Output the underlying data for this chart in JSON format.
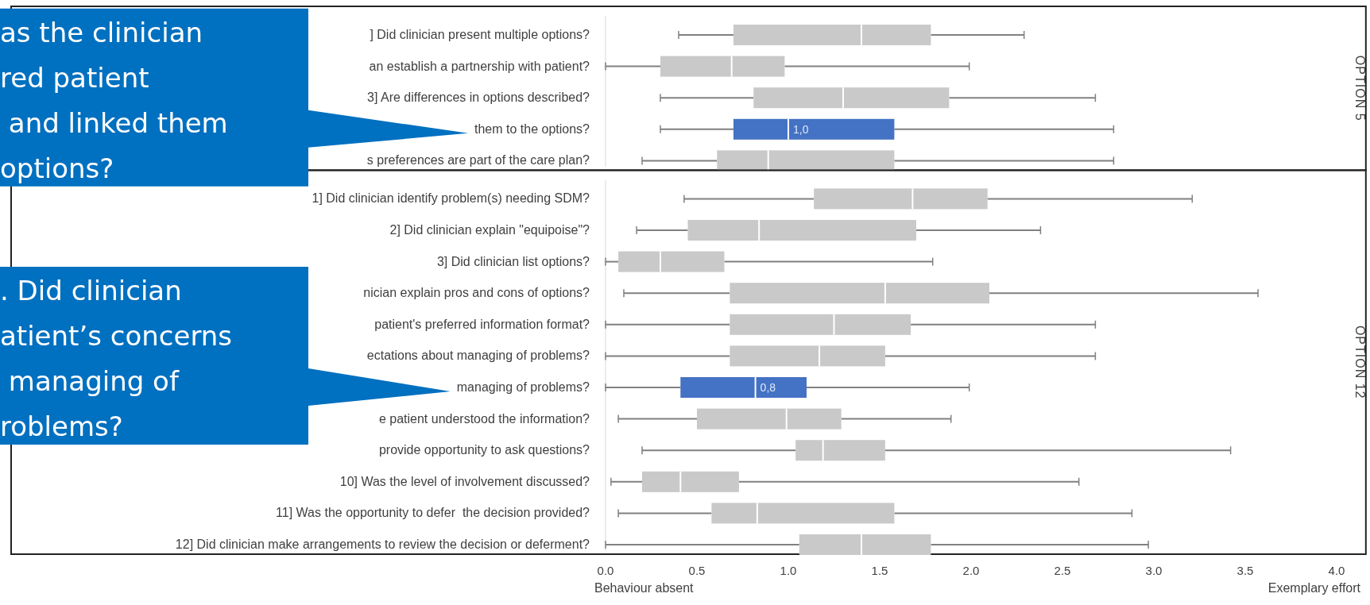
{
  "chart_data": [
    {
      "type": "box",
      "title": "OPTION 5",
      "orientation": "horizontal",
      "categories": [
        "] Did clinician present multiple options?",
        "an establish a partnership with patient?",
        "3] Are differences in options described?",
        "them to the options?",
        "s preferences are part of the care plan?"
      ],
      "boxes": [
        {
          "low": 0.4,
          "q1": 0.7,
          "median": 1.4,
          "q3": 1.78,
          "high": 2.29
        },
        {
          "low": 0,
          "q1": 0.3,
          "median": 0.69,
          "q3": 0.98,
          "high": 1.99
        },
        {
          "low": 0.3,
          "q1": 0.81,
          "median": 1.3,
          "q3": 1.88,
          "high": 2.68
        },
        {
          "low": 0.3,
          "q1": 0.7,
          "median": 1.0,
          "q3": 1.58,
          "high": 2.78
        },
        {
          "low": 0.2,
          "q1": 0.61,
          "median": 0.89,
          "q3": 1.58,
          "high": 2.78
        }
      ],
      "colors": [
        "#c9c9c9",
        "#c9c9c9",
        "#c9c9c9",
        "#4472c4",
        "#c9c9c9"
      ],
      "value_labels": [
        null,
        null,
        null,
        "1,0",
        null
      ],
      "xlim": [
        0,
        4.16
      ],
      "tick_labels": "y",
      "annotations": [
        "as the clinician\nred patient\n and linked them\noptions?"
      ]
    },
    {
      "type": "box",
      "title": "OPTION 12",
      "orientation": "horizontal",
      "categories": [
        "1] Did clinician identify problem(s) needing SDM?",
        "2] Did clinician explain \"equipoise\"?",
        "3] Did clinician list options?",
        "nician explain pros and cons of options?",
        "patient's preferred information format?",
        "ectations about managing of problems?",
        "managing of problems?",
        "e patient understood the information?",
        "provide opportunity to ask questions?",
        "10] Was the level of involvement discussed?",
        "11] Was the opportunity to defer  the decision provided?",
        "12] Did clinician make arrangements to review the decision or deferment?"
      ],
      "boxes": [
        {
          "low": 0.43,
          "q1": 1.14,
          "median": 1.68,
          "q3": 2.09,
          "high": 3.21
        },
        {
          "low": 0.17,
          "q1": 0.45,
          "median": 0.84,
          "q3": 1.7,
          "high": 2.38
        },
        {
          "low": 0,
          "q1": 0.07,
          "median": 0.3,
          "q3": 0.65,
          "high": 1.79
        },
        {
          "low": 0.1,
          "q1": 0.68,
          "median": 1.53,
          "q3": 2.1,
          "high": 3.57
        },
        {
          "low": 0,
          "q1": 0.68,
          "median": 1.25,
          "q3": 1.67,
          "high": 2.68
        },
        {
          "low": 0,
          "q1": 0.68,
          "median": 1.17,
          "q3": 1.53,
          "high": 2.68
        },
        {
          "low": 0,
          "q1": 0.41,
          "median": 0.82,
          "q3": 1.1,
          "high": 1.99
        },
        {
          "low": 0.07,
          "q1": 0.5,
          "median": 0.99,
          "q3": 1.29,
          "high": 1.89
        },
        {
          "low": 0.2,
          "q1": 1.04,
          "median": 1.19,
          "q3": 1.53,
          "high": 3.42
        },
        {
          "low": 0.03,
          "q1": 0.2,
          "median": 0.41,
          "q3": 0.73,
          "high": 2.59
        },
        {
          "low": 0.07,
          "q1": 0.58,
          "median": 0.83,
          "q3": 1.58,
          "high": 2.88
        },
        {
          "low": 0,
          "q1": 1.06,
          "median": 1.4,
          "q3": 1.78,
          "high": 2.97
        }
      ],
      "colors": [
        "#c9c9c9",
        "#c9c9c9",
        "#c9c9c9",
        "#c9c9c9",
        "#c9c9c9",
        "#c9c9c9",
        "#4472c4",
        "#c9c9c9",
        "#c9c9c9",
        "#c9c9c9",
        "#c9c9c9",
        "#c9c9c9"
      ],
      "value_labels": [
        null,
        null,
        null,
        null,
        null,
        null,
        "0,8",
        null,
        null,
        null,
        null,
        null
      ],
      "xlim": [
        0,
        4.16
      ],
      "xticks": [
        {
          "value": 0,
          "label": "0.0"
        },
        {
          "value": 0.5,
          "label": "0.5"
        },
        {
          "value": 1,
          "label": "1.0"
        },
        {
          "value": 1.5,
          "label": "1.5"
        },
        {
          "value": 2,
          "label": "2.0"
        },
        {
          "value": 2.5,
          "label": "2.5"
        },
        {
          "value": 3,
          "label": "3.0"
        },
        {
          "value": 3.5,
          "label": "3.5"
        },
        {
          "value": 4,
          "label": "4.0"
        }
      ],
      "annotations": [
        ". Did clinician\natient’s concerns\n managing of\nroblems?",
        "Behaviour absent",
        "Exemplary effort"
      ]
    }
  ]
}
